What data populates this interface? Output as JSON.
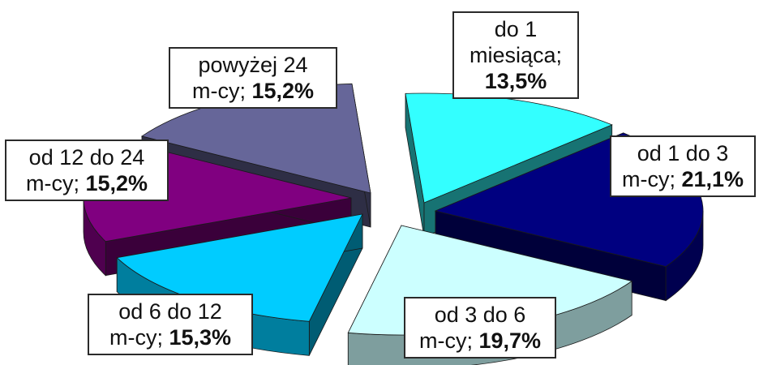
{
  "chart_data": {
    "type": "pie",
    "title": "",
    "legend": "none",
    "slices": [
      {
        "label_lines": [
          "do 1",
          "miesiąca;"
        ],
        "value_text": "13,5%",
        "value": 13.5,
        "color": "#33ffff"
      },
      {
        "label_lines": [
          "od 1 do 3",
          "m-cy;"
        ],
        "value_text": "21,1%",
        "value": 21.1,
        "color": "#000080"
      },
      {
        "label_lines": [
          "od 3 do 6",
          "m-cy;"
        ],
        "value_text": "19,7%",
        "value": 19.7,
        "color": "#ccffff"
      },
      {
        "label_lines": [
          "od 6 do 12",
          "m-cy;"
        ],
        "value_text": "15,3%",
        "value": 15.3,
        "color": "#00ccff"
      },
      {
        "label_lines": [
          "od 12 do 24",
          "m-cy;"
        ],
        "value_text": "15,2%",
        "value": 15.2,
        "color": "#800080"
      },
      {
        "label_lines": [
          "powyżej 24",
          "m-cy;"
        ],
        "value_text": "15,2%",
        "value": 15.2,
        "color": "#666699"
      }
    ]
  }
}
